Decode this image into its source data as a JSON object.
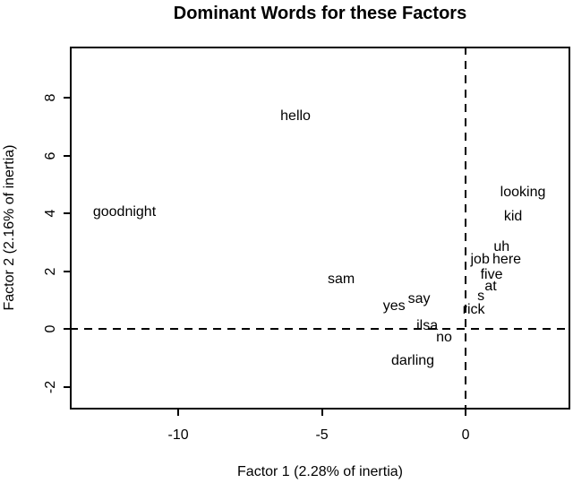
{
  "chart_data": {
    "type": "scatter",
    "title": "Dominant Words for these Factors",
    "xlabel": "Factor 1 (2.28% of inertia)",
    "ylabel": "Factor 2 (2.16% of inertia)",
    "xlim": [
      -13.77,
      3.64
    ],
    "ylim": [
      -2.79,
      9.77
    ],
    "x_ticks": [
      -10,
      -5,
      0
    ],
    "y_ticks": [
      8,
      6,
      4,
      2,
      0,
      -2
    ],
    "grid": false,
    "legend": "none",
    "marker": "text-label",
    "reference_lines": {
      "vertical_x": 0,
      "horizontal_y": 0,
      "style": "dashed"
    },
    "colors": {
      "text": "#000000",
      "axis": "#000000",
      "background": "#ffffff"
    },
    "points": [
      {
        "label": "goodnight",
        "x": -11.87,
        "y": 4.03
      },
      {
        "label": "hello",
        "x": -5.92,
        "y": 7.35
      },
      {
        "label": "sam",
        "x": -4.33,
        "y": 1.71
      },
      {
        "label": "yes",
        "x": -2.49,
        "y": 0.78
      },
      {
        "label": "say",
        "x": -1.62,
        "y": 1.02
      },
      {
        "label": "darling",
        "x": -1.84,
        "y": -1.12
      },
      {
        "label": "ilsa",
        "x": -1.34,
        "y": 0.09
      },
      {
        "label": "no",
        "x": -0.75,
        "y": -0.31
      },
      {
        "label": "rick",
        "x": 0.28,
        "y": 0.65
      },
      {
        "label": "s",
        "x": 0.53,
        "y": 1.12
      },
      {
        "label": "at",
        "x": 0.87,
        "y": 1.46
      },
      {
        "label": "five",
        "x": 0.9,
        "y": 1.86
      },
      {
        "label": "job",
        "x": 0.5,
        "y": 2.39
      },
      {
        "label": "here",
        "x": 1.43,
        "y": 2.39
      },
      {
        "label": "uh",
        "x": 1.25,
        "y": 2.82
      },
      {
        "label": "kid",
        "x": 1.65,
        "y": 3.88
      },
      {
        "label": "looking",
        "x": 1.99,
        "y": 4.71
      }
    ]
  }
}
